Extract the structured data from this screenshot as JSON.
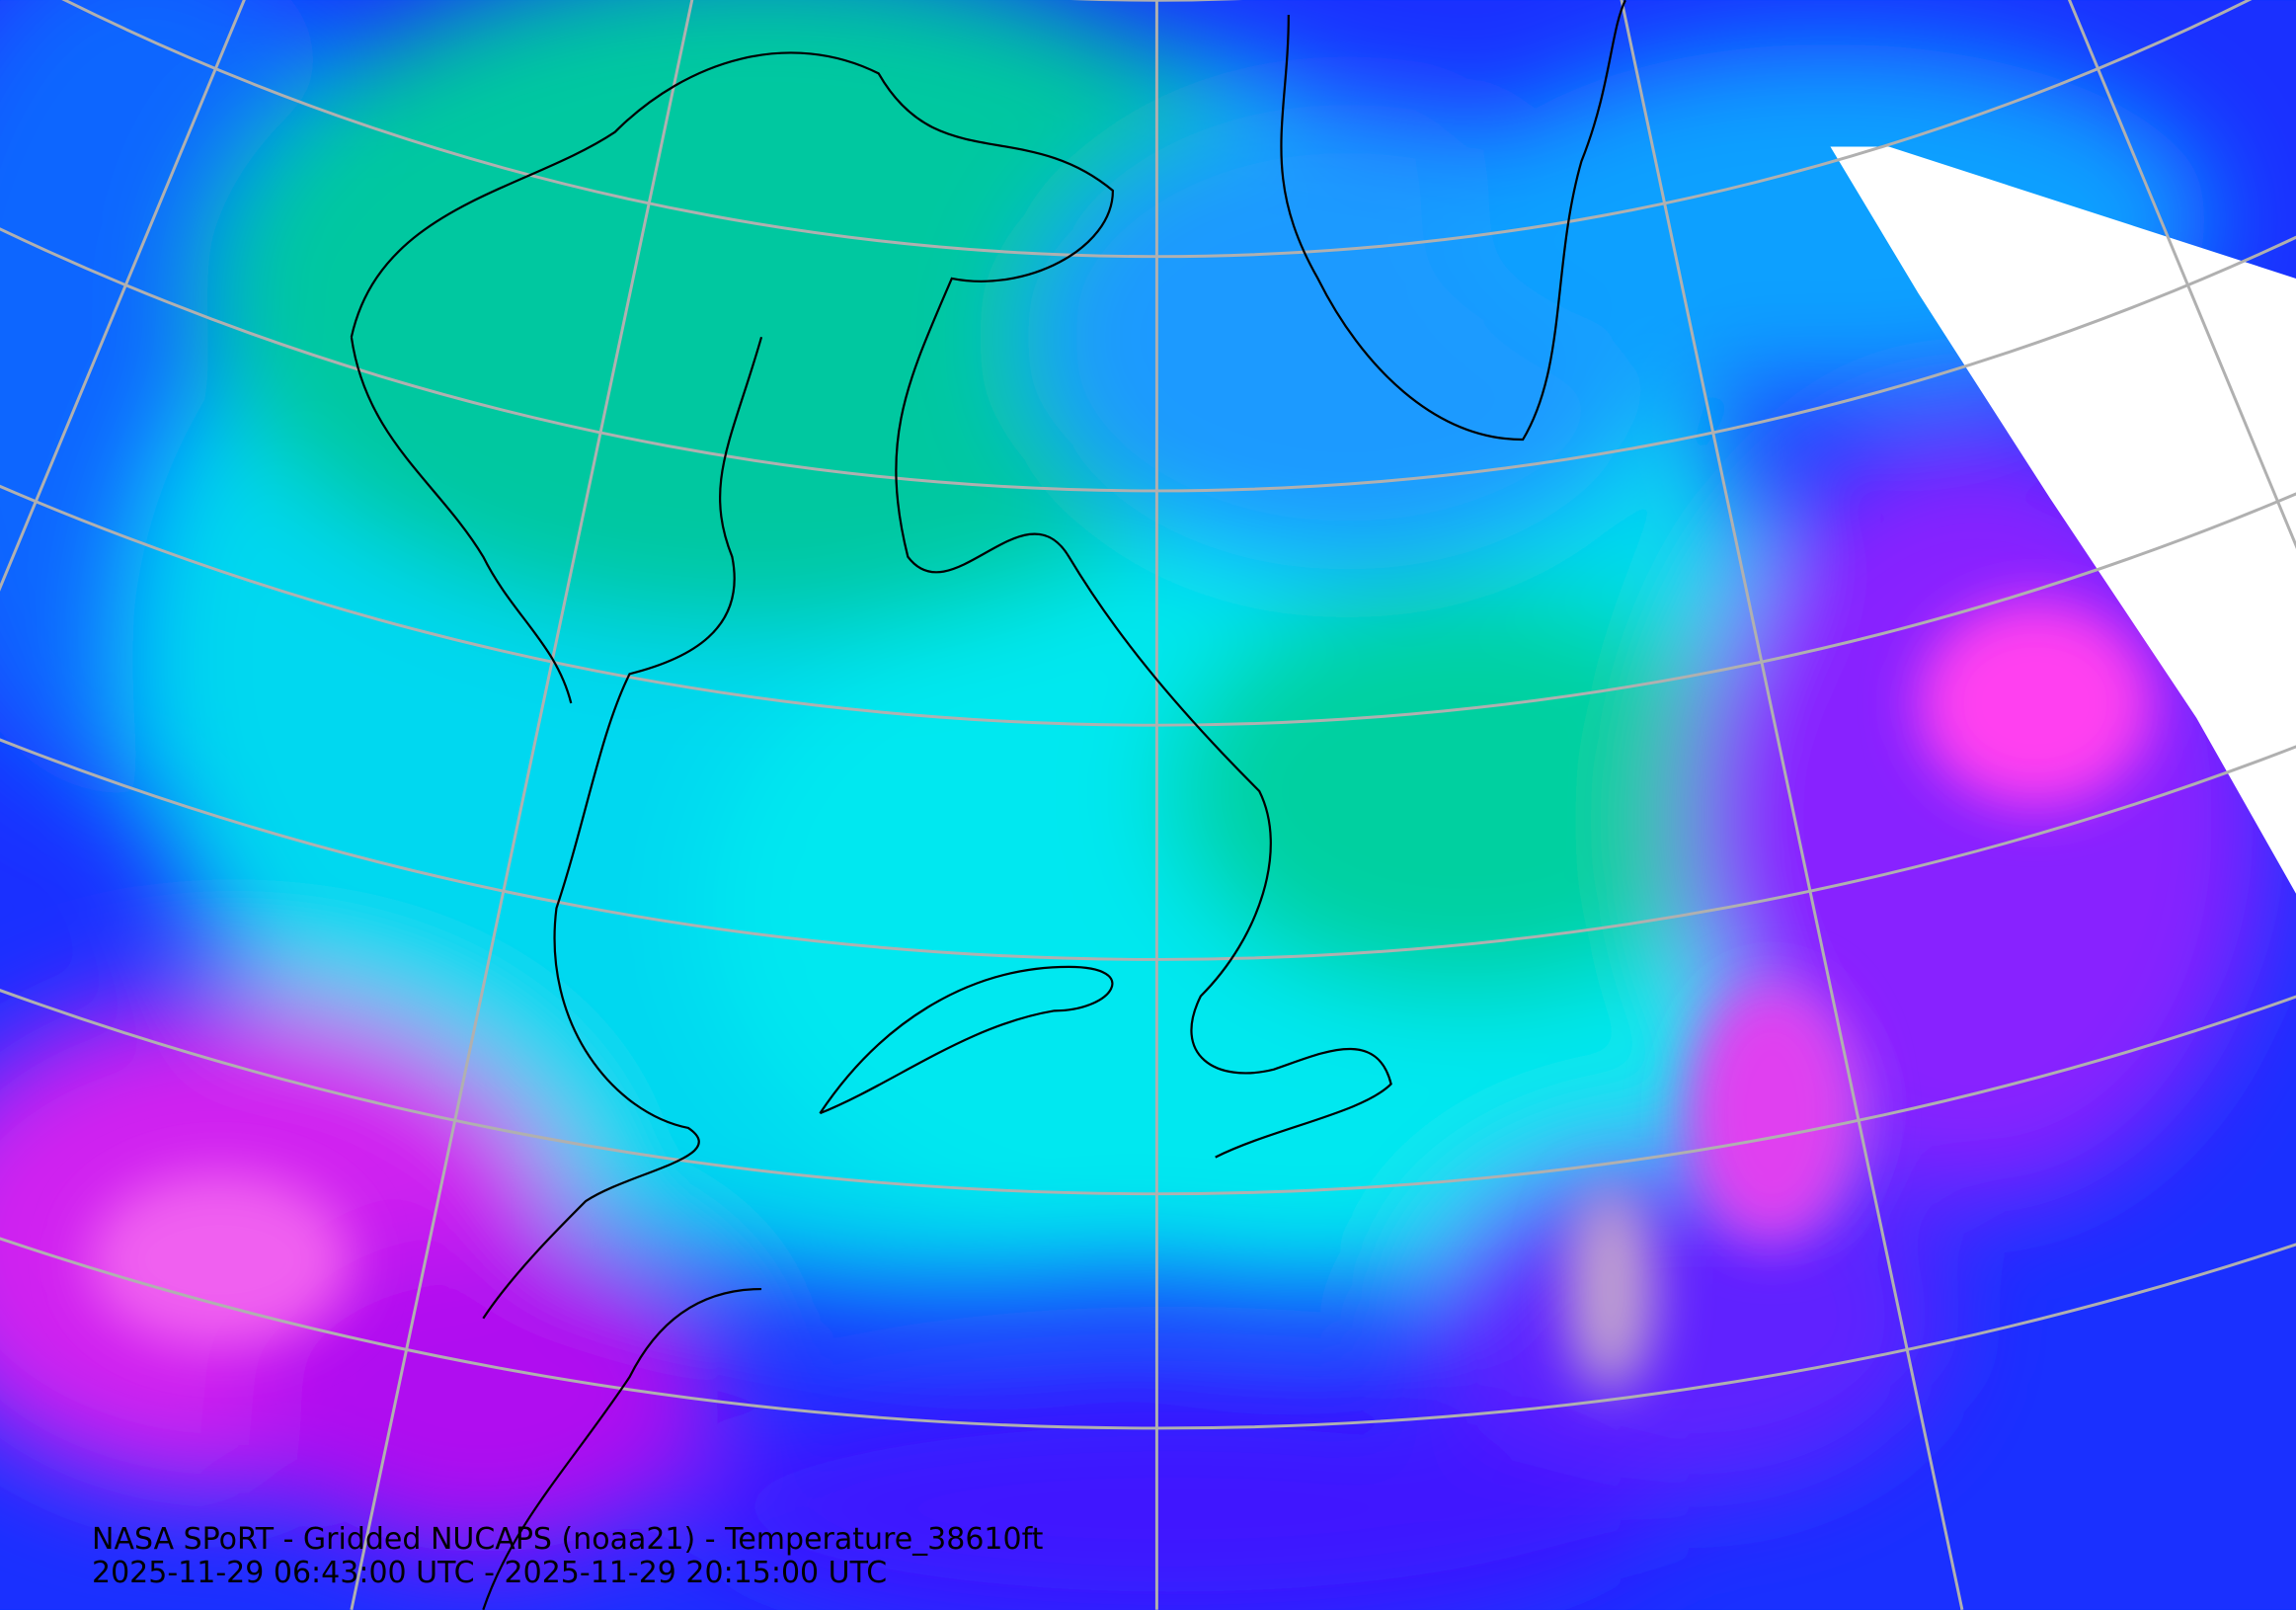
{
  "caption": {
    "title": "NASA SPoRT - Gridded NUCAPS (noaa21) - Temperature_38610ft",
    "time_range": "2025-11-29 06:43:00 UTC - 2025-11-29 20:15:00 UTC"
  }
}
